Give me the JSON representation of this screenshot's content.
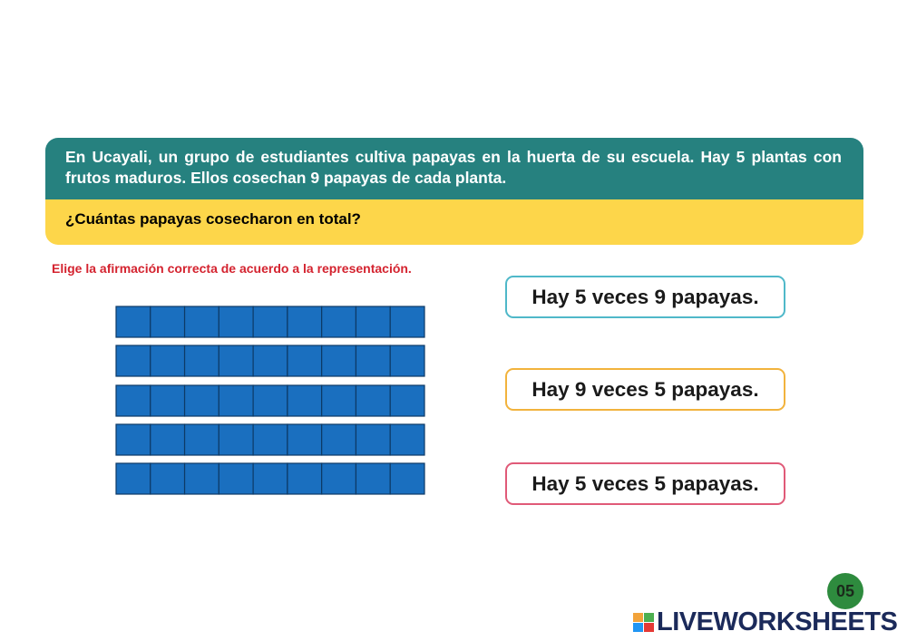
{
  "problem": {
    "statement": "En Ucayali, un grupo de estudiantes cultiva papayas en la huerta de su escuela. Hay 5 plantas con frutos maduros. Ellos cosechan 9 papayas de cada planta.",
    "question": "¿Cuántas papayas cosecharon en total?"
  },
  "instruction": "Elige la afirmación correcta de acuerdo a la representación.",
  "options": [
    "Hay 5 veces 9 papayas.",
    "Hay 9 veces 5 papayas.",
    "Hay 5 veces 5 papayas."
  ],
  "page_number": "05",
  "brand": "LIVEWORKSHEETS"
}
